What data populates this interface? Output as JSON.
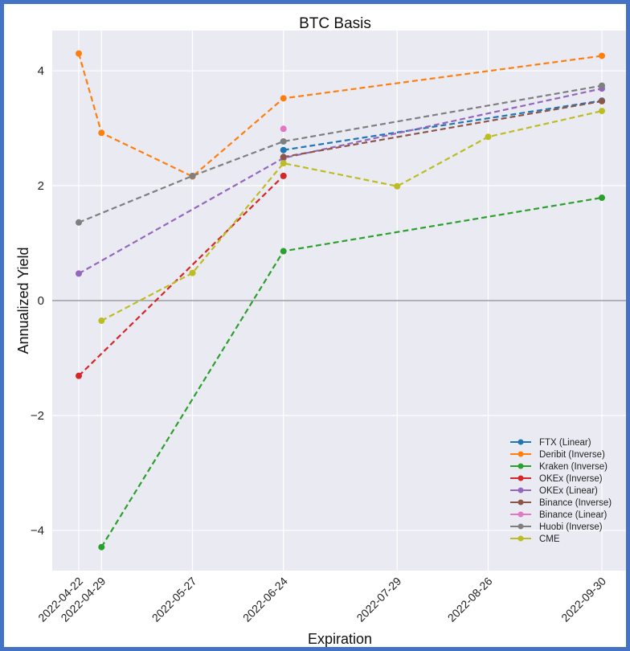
{
  "chart_data": {
    "type": "line",
    "title": "BTC Basis",
    "xlabel": "Expiration",
    "ylabel": "Annualized Yield",
    "categories": [
      "2022-04-22",
      "2022-04-29",
      "2022-05-27",
      "2022-06-24",
      "2022-07-29",
      "2022-08-26",
      "2022-09-30"
    ],
    "ylim": [
      -4.7,
      4.7
    ],
    "yticks": [
      -4,
      -2,
      0,
      2,
      4
    ],
    "grid": true,
    "zero_line": true,
    "legend_position": "lower-right",
    "series": [
      {
        "name": "FTX (Linear)",
        "color": "#1f77b4",
        "x": [
          "2022-06-24",
          "2022-09-30"
        ],
        "values": [
          2.62,
          3.48
        ]
      },
      {
        "name": "Deribit (Inverse)",
        "color": "#ff7f0e",
        "x": [
          "2022-04-22",
          "2022-04-29",
          "2022-05-27",
          "2022-06-24",
          "2022-09-30"
        ],
        "values": [
          4.3,
          2.92,
          2.16,
          3.52,
          4.26
        ]
      },
      {
        "name": "Kraken (Inverse)",
        "color": "#2ca02c",
        "x": [
          "2022-04-29",
          "2022-06-24",
          "2022-09-30"
        ],
        "values": [
          -4.29,
          0.86,
          1.79
        ]
      },
      {
        "name": "OKEx (Inverse)",
        "color": "#d62728",
        "x": [
          "2022-04-22",
          "2022-06-24"
        ],
        "values": [
          -1.31,
          2.17
        ]
      },
      {
        "name": "OKEx (Linear)",
        "color": "#9467bd",
        "x": [
          "2022-04-22",
          "2022-06-24",
          "2022-09-30"
        ],
        "values": [
          0.47,
          2.48,
          3.69
        ]
      },
      {
        "name": "Binance (Inverse)",
        "color": "#8c564b",
        "x": [
          "2022-06-24",
          "2022-09-30"
        ],
        "values": [
          2.5,
          3.47
        ]
      },
      {
        "name": "Binance (Linear)",
        "color": "#e377c2",
        "x": [
          "2022-06-24"
        ],
        "values": [
          2.99
        ]
      },
      {
        "name": "Huobi (Inverse)",
        "color": "#7f7f7f",
        "x": [
          "2022-04-22",
          "2022-05-27",
          "2022-06-24",
          "2022-09-30"
        ],
        "values": [
          1.36,
          2.17,
          2.77,
          3.74
        ]
      },
      {
        "name": "CME",
        "color": "#bcbd22",
        "x": [
          "2022-04-29",
          "2022-05-27",
          "2022-06-24",
          "2022-07-29",
          "2022-08-26",
          "2022-09-30"
        ],
        "values": [
          -0.35,
          0.48,
          2.39,
          1.99,
          2.85,
          3.3
        ]
      }
    ]
  }
}
